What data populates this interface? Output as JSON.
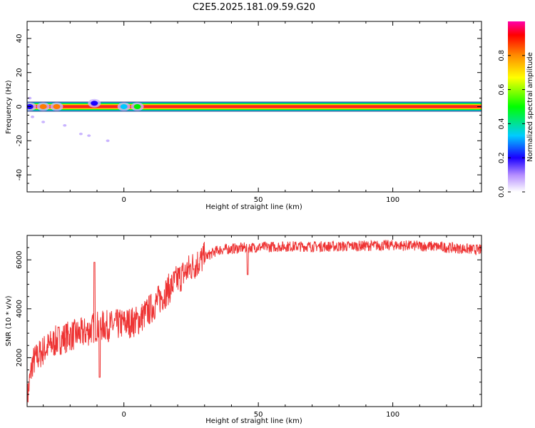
{
  "figure_title": "C2E5.2025.181.09.59.G20",
  "chart_data": [
    {
      "type": "heatmap",
      "xlabel": "Height of straight line (km)",
      "ylabel": "Frequency (Hz)",
      "xlim": [
        -36,
        133
      ],
      "ylim": [
        -50,
        50
      ],
      "x_ticks": [
        0,
        50,
        100
      ],
      "y_ticks": [
        -40,
        -20,
        0,
        20,
        40
      ],
      "grid": false,
      "colorbar": {
        "label": "Normalized spectral amplitude",
        "range": [
          0,
          1
        ],
        "ticks": [
          0.0,
          0.2,
          0.4,
          0.6,
          0.8
        ]
      },
      "main_band": {
        "x_start": -36,
        "x_end": 133,
        "frequency": 0,
        "amplitude_center": 0.85,
        "half_width": 2.5
      },
      "features": [
        {
          "x": -35,
          "y": 0,
          "amp": 0.2
        },
        {
          "x": -30,
          "y": 0,
          "amp": 0.75
        },
        {
          "x": -25,
          "y": 0,
          "amp": 0.8
        },
        {
          "x": -11,
          "y": 2,
          "amp": 0.3
        },
        {
          "x": 0,
          "y": 0,
          "amp": 0.4
        },
        {
          "x": 5,
          "y": 0,
          "amp": 0.5
        }
      ],
      "scatter_artifacts": [
        {
          "x": -34,
          "y": -6
        },
        {
          "x": -30,
          "y": -9
        },
        {
          "x": -22,
          "y": -11
        },
        {
          "x": -16,
          "y": -16
        },
        {
          "x": -13,
          "y": -17
        },
        {
          "x": -6,
          "y": -20
        },
        {
          "x": -35,
          "y": 5
        }
      ]
    },
    {
      "type": "line",
      "xlabel": "Height of straight line (km)",
      "ylabel": "SNR (10 * v/v)",
      "xlim": [
        -36,
        133
      ],
      "ylim": [
        0,
        7000
      ],
      "x_ticks": [
        0,
        50,
        100
      ],
      "y_ticks": [
        2000,
        4000,
        6000
      ],
      "grid": false,
      "color": "#ee3333",
      "trend": [
        [
          -36,
          300
        ],
        [
          -34,
          1800
        ],
        [
          -30,
          2300
        ],
        [
          -25,
          2700
        ],
        [
          -20,
          2900
        ],
        [
          -15,
          3000
        ],
        [
          -10,
          3300
        ],
        [
          -5,
          3300
        ],
        [
          0,
          3400
        ],
        [
          5,
          3500
        ],
        [
          10,
          4000
        ],
        [
          15,
          4600
        ],
        [
          20,
          5200
        ],
        [
          25,
          5700
        ],
        [
          30,
          6100
        ],
        [
          35,
          6400
        ],
        [
          45,
          6500
        ],
        [
          60,
          6550
        ],
        [
          80,
          6550
        ],
        [
          100,
          6600
        ],
        [
          115,
          6550
        ],
        [
          133,
          6400
        ]
      ],
      "spikes": [
        {
          "x": -11,
          "y": 5900
        },
        {
          "x": -9,
          "y": 1200
        },
        {
          "x": 46,
          "y": 5400
        }
      ]
    }
  ]
}
